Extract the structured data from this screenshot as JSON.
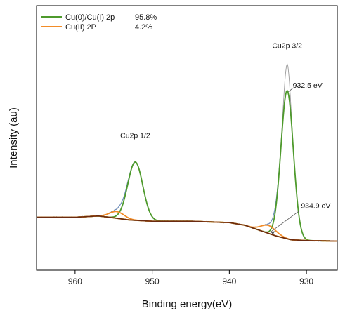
{
  "chart_data": {
    "type": "line",
    "title": "",
    "xlabel": "Binding energy(eV)",
    "ylabel": "Intensity (au)",
    "x_reversed": true,
    "xlim": [
      965,
      926
    ],
    "ylim": [
      0,
      100
    ],
    "xticks": [
      960,
      950,
      940,
      930
    ],
    "colors": {
      "raw": "#9a9a9a",
      "envelope": "#6b8fc4",
      "background": "#6b2a10",
      "cu0": "#4e9a2c",
      "cu2": "#f28c28"
    },
    "legend": {
      "position": "top-left",
      "entries": [
        {
          "name": "Cu(0)/Cu(I) 2p",
          "value": "95.8%",
          "color": "#4e9a2c"
        },
        {
          "name": "Cu(II) 2P",
          "value": "4.2%",
          "color": "#f28c28"
        }
      ]
    },
    "annotations": [
      {
        "text": "Cu2p 3/2",
        "x": 932.5,
        "y": 83
      },
      {
        "text": "932.5 eV",
        "x": 932.5,
        "y": 68
      },
      {
        "text": "Cu2p 1/2",
        "x": 952.2,
        "y": 48
      },
      {
        "text": "934.9 eV",
        "x": 934.9,
        "y": 22
      }
    ],
    "background": [
      {
        "x": 965,
        "y": 20
      },
      {
        "x": 960,
        "y": 20
      },
      {
        "x": 957,
        "y": 20.5
      },
      {
        "x": 955,
        "y": 19.8
      },
      {
        "x": 953,
        "y": 19
      },
      {
        "x": 950,
        "y": 18.5
      },
      {
        "x": 945,
        "y": 18.5
      },
      {
        "x": 940,
        "y": 18
      },
      {
        "x": 938,
        "y": 17
      },
      {
        "x": 936,
        "y": 15
      },
      {
        "x": 934,
        "y": 13
      },
      {
        "x": 932,
        "y": 11.5
      },
      {
        "x": 930,
        "y": 11.2
      },
      {
        "x": 926,
        "y": 11
      }
    ],
    "peaks": [
      {
        "name": "Cu(0)/Cu(I) 2p",
        "center": 932.5,
        "height": 56,
        "fwhm": 1.9,
        "color": "#4e9a2c"
      },
      {
        "name": "Cu(0)/Cu(I) 2p",
        "center": 952.2,
        "height": 22,
        "fwhm": 2.3,
        "color": "#4e9a2c"
      },
      {
        "name": "Cu(II) 2P",
        "center": 934.9,
        "height": 3,
        "fwhm": 2.3,
        "color": "#f28c28"
      },
      {
        "name": "Cu(II) 2P",
        "center": 954.6,
        "height": 2.5,
        "fwhm": 2.3,
        "color": "#f28c28"
      }
    ],
    "raw_extra": [
      {
        "center": 932.5,
        "height": 10,
        "fwhm": 0.8
      }
    ]
  }
}
